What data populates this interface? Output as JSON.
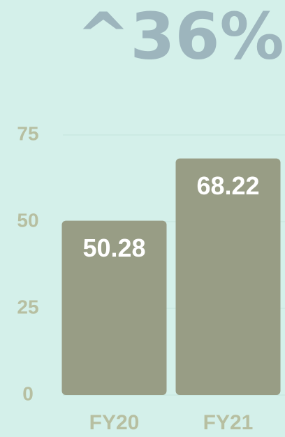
{
  "chart_data": {
    "type": "bar",
    "title": "^36%",
    "categories": [
      "FY20",
      "FY21"
    ],
    "values": [
      50.28,
      68.22
    ],
    "color": "#989d85",
    "ylim": [
      0,
      75
    ],
    "yticks": [
      0,
      25,
      50,
      75
    ],
    "grid": true
  }
}
